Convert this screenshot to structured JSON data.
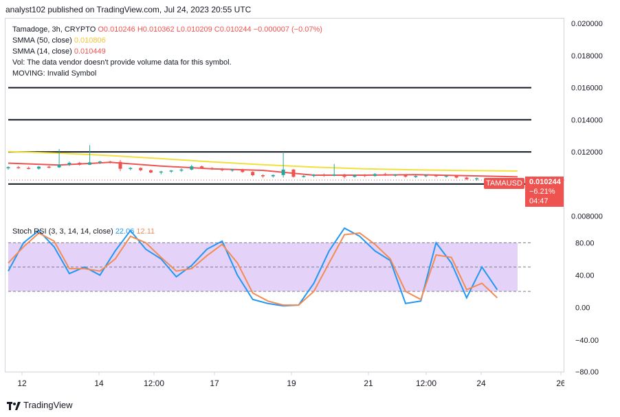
{
  "header": {
    "published": "analyst102 published on TradingView.com, Jul 24, 2023 20:55 UTC"
  },
  "legend": {
    "symbol": "Tamadoge, 3h, CRYPTO",
    "ohlc": "O0.010246  H0.010362  L0.010209  C0.010244  −0.000007 (−0.07%)",
    "sma50_label": "SMMA (50, close)",
    "sma50_value": "0.010806",
    "sma14_label": "SMMA (14, close)",
    "sma14_value": "0.010449",
    "vol": "Vol: The data vendor doesn't provide volume data for this symbol.",
    "moving": "MOVING: Invalid Symbol",
    "stoch_label": "Stoch RSI (3, 3, 14, 14, close)",
    "stoch_k": "22.06",
    "stoch_d": "12.11"
  },
  "price_tag": {
    "symbol": "TAMAUSD",
    "price": "0.010244",
    "change": "−6.21%",
    "time": "04:47"
  },
  "footer": {
    "brand": "TradingView"
  },
  "chart_data": [
    {
      "type": "candlestick",
      "title": "Tamadoge, 3h, CRYPTO",
      "x_ticks": [
        "12",
        "14",
        "12:00",
        "17",
        "19",
        "21",
        "12:00",
        "24",
        "26"
      ],
      "y_ticks": [
        "0.020000",
        "0.018000",
        "0.016000",
        "0.014000",
        "0.012000",
        "0.010244",
        "0.008000"
      ],
      "ylim": [
        0.0079,
        0.0203
      ],
      "horizontal_levels": [
        0.016,
        0.014,
        0.012,
        0.01
      ],
      "series": [
        {
          "name": "SMMA (50, close)",
          "color": "#f2e03a",
          "x": [
            0,
            10,
            20,
            30,
            40,
            50,
            60,
            70,
            80,
            90,
            100
          ],
          "values": [
            0.01202,
            0.01192,
            0.01177,
            0.01158,
            0.01138,
            0.0112,
            0.01105,
            0.01095,
            0.01088,
            0.01084,
            0.01081
          ]
        },
        {
          "name": "SMMA (14, close)",
          "color": "#ef5350",
          "x": [
            0,
            10,
            20,
            30,
            40,
            50,
            60,
            70,
            80,
            90,
            100
          ],
          "values": [
            0.0113,
            0.01118,
            0.01135,
            0.01112,
            0.01095,
            0.01085,
            0.01055,
            0.01055,
            0.01058,
            0.01052,
            0.01045
          ]
        }
      ],
      "candles": [
        [
          0,
          0.01098,
          0.0111,
          0.0109,
          0.01105
        ],
        [
          2,
          0.01105,
          0.01112,
          0.01095,
          0.011
        ],
        [
          4,
          0.011,
          0.01108,
          0.01092,
          0.01096
        ],
        [
          6,
          0.01096,
          0.01112,
          0.0109,
          0.01108
        ],
        [
          8,
          0.01108,
          0.01114,
          0.01098,
          0.01104
        ],
        [
          10,
          0.01104,
          0.01218,
          0.011,
          0.0112
        ],
        [
          12,
          0.0112,
          0.0114,
          0.01112,
          0.01132
        ],
        [
          14,
          0.01132,
          0.01138,
          0.01115,
          0.0112
        ],
        [
          16,
          0.0112,
          0.01242,
          0.01118,
          0.01135
        ],
        [
          18,
          0.01135,
          0.01145,
          0.01125,
          0.0114
        ],
        [
          20,
          0.0114,
          0.01145,
          0.01128,
          0.01138
        ],
        [
          22,
          0.01138,
          0.0115,
          0.0108,
          0.01095
        ],
        [
          24,
          0.01095,
          0.01105,
          0.01085,
          0.011
        ],
        [
          26,
          0.011,
          0.01104,
          0.0108,
          0.01086
        ],
        [
          28,
          0.01086,
          0.0109,
          0.01068,
          0.01072
        ],
        [
          30,
          0.01072,
          0.01082,
          0.0106,
          0.01078
        ],
        [
          32,
          0.01078,
          0.01088,
          0.0107,
          0.01084
        ],
        [
          34,
          0.01084,
          0.01098,
          0.01075,
          0.0109
        ],
        [
          36,
          0.0109,
          0.0112,
          0.01085,
          0.0111
        ],
        [
          38,
          0.0111,
          0.01115,
          0.01095,
          0.011
        ],
        [
          40,
          0.011,
          0.01105,
          0.01088,
          0.01094
        ],
        [
          42,
          0.01094,
          0.011,
          0.0108,
          0.01086
        ],
        [
          44,
          0.01086,
          0.01094,
          0.01076,
          0.0109
        ],
        [
          46,
          0.0109,
          0.01095,
          0.0107,
          0.01075
        ],
        [
          48,
          0.01075,
          0.0108,
          0.01048,
          0.01055
        ],
        [
          50,
          0.01055,
          0.0106,
          0.0104,
          0.01048
        ],
        [
          52,
          0.01048,
          0.0106,
          0.0104,
          0.01056
        ],
        [
          54,
          0.01056,
          0.012,
          0.0104,
          0.0109
        ],
        [
          56,
          0.0109,
          0.01094,
          0.0104,
          0.01045
        ],
        [
          58,
          0.01045,
          0.01055,
          0.0104,
          0.0105
        ],
        [
          60,
          0.0105,
          0.01062,
          0.01042,
          0.01058
        ],
        [
          62,
          0.01058,
          0.01065,
          0.01045,
          0.01052
        ],
        [
          64,
          0.01052,
          0.01125,
          0.01048,
          0.0106
        ],
        [
          66,
          0.0106,
          0.01064,
          0.01035,
          0.01045
        ],
        [
          68,
          0.01045,
          0.0106,
          0.0104,
          0.01056
        ],
        [
          70,
          0.01056,
          0.01062,
          0.01044,
          0.0105
        ],
        [
          72,
          0.0105,
          0.01068,
          0.01046,
          0.01062
        ],
        [
          74,
          0.01062,
          0.0107,
          0.0105,
          0.01055
        ],
        [
          76,
          0.01055,
          0.01062,
          0.01045,
          0.01058
        ],
        [
          78,
          0.01058,
          0.0106,
          0.0104,
          0.01046
        ],
        [
          80,
          0.01046,
          0.01055,
          0.01038,
          0.0105
        ],
        [
          82,
          0.0105,
          0.01058,
          0.01042,
          0.01055
        ],
        [
          84,
          0.01055,
          0.0106,
          0.01044,
          0.01048
        ],
        [
          86,
          0.01048,
          0.01056,
          0.0104,
          0.01052
        ],
        [
          88,
          0.01052,
          0.01056,
          0.01035,
          0.0104
        ],
        [
          90,
          0.0104,
          0.01046,
          0.01025,
          0.0103
        ],
        [
          92,
          0.0103,
          0.0104,
          0.0102,
          0.01036
        ],
        [
          94,
          0.01036,
          0.01036,
          0.0101,
          0.01024
        ]
      ]
    },
    {
      "type": "line",
      "title": "Stoch RSI (3, 3, 14, 14, close)",
      "y_ticks": [
        "80.00",
        "40.00",
        "0.00",
        "−40.00",
        "−80.00"
      ],
      "ylim": [
        -80,
        110
      ],
      "band": [
        20,
        80
      ],
      "series": [
        {
          "name": "K",
          "color": "#2196f3",
          "x": [
            0,
            3,
            6,
            9,
            12,
            15,
            18,
            21,
            24,
            27,
            30,
            33,
            36,
            39,
            42,
            45,
            48,
            51,
            54,
            57,
            60,
            63,
            66,
            69,
            72,
            75,
            78,
            81,
            84,
            87,
            90,
            93,
            96
          ],
          "values": [
            45,
            80,
            95,
            75,
            42,
            50,
            40,
            70,
            95,
            72,
            60,
            38,
            52,
            72,
            82,
            40,
            10,
            5,
            2,
            3,
            30,
            70,
            98,
            88,
            70,
            58,
            5,
            8,
            80,
            55,
            12,
            50,
            22
          ]
        },
        {
          "name": "D",
          "color": "#f28b54",
          "x": [
            0,
            3,
            6,
            9,
            12,
            15,
            18,
            21,
            24,
            27,
            30,
            33,
            36,
            39,
            42,
            45,
            48,
            51,
            54,
            57,
            60,
            63,
            66,
            69,
            72,
            75,
            78,
            81,
            84,
            87,
            90,
            93,
            96
          ],
          "values": [
            55,
            75,
            92,
            82,
            48,
            48,
            45,
            60,
            88,
            80,
            62,
            45,
            48,
            64,
            78,
            55,
            18,
            8,
            3,
            3,
            20,
            55,
            90,
            92,
            78,
            60,
            20,
            10,
            65,
            62,
            22,
            30,
            12
          ]
        }
      ]
    }
  ]
}
